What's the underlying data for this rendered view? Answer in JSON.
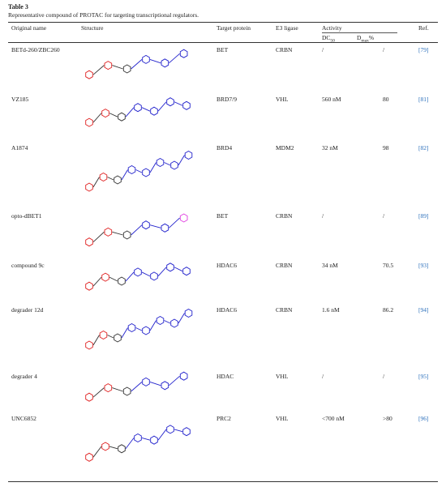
{
  "caption": {
    "label": "Table 3",
    "text": "Representative compound of PROTAC for targeting transcriptional regulators."
  },
  "table": {
    "headers": {
      "name": "Original name",
      "structure": "Structure",
      "target": "Target protein",
      "e3": "E3 ligase",
      "activity": "Activity",
      "dc": "DC",
      "dc_sub": "50",
      "dmax": "D",
      "dmax_sub": "max",
      "dmax_unit": "%",
      "ref": "Ref."
    },
    "rows": [
      [
        "BETd-260/ZBC260",
        "BET",
        "CRBN",
        "/",
        "/",
        "[79]"
      ],
      [
        "VZ185",
        "BRD7/9",
        "VHL",
        "560 nM",
        "80",
        "[81]"
      ],
      [
        "A1874",
        "BRD4",
        "MDM2",
        "32 nM",
        "98",
        "[82]"
      ],
      [
        "opto-dBET1",
        "BET",
        "CRBN",
        "/",
        "/",
        "[89]"
      ],
      [
        "compound 9c",
        "HDAC6",
        "CRBN",
        "34 nM",
        "70.5",
        "[93]"
      ],
      [
        "degrader 12d",
        "HDAC6",
        "CRBN",
        "1.6 nM",
        "86.2",
        "[94]"
      ],
      [
        "degrader 4",
        "HDAC",
        "VHL",
        "/",
        "/",
        "[95]"
      ],
      [
        "UNC6852",
        "PRC2",
        "VHL",
        "<700 nM",
        ">80",
        "[96]"
      ]
    ]
  }
}
